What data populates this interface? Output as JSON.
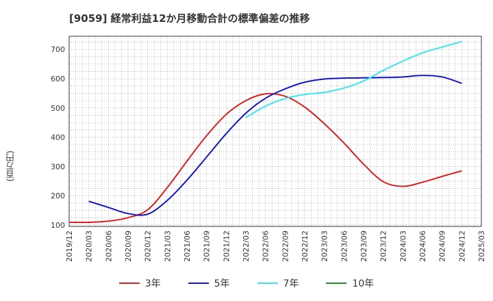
{
  "chart_data": {
    "type": "line",
    "title": "[9059]  経常利益12か月移動合計の標準偏差の推移",
    "ylabel": "(百万円)",
    "xlabel": "",
    "ylim": [
      95,
      745
    ],
    "yticks": [
      100,
      200,
      300,
      400,
      500,
      600,
      700
    ],
    "x_ticks": [
      "2019/12",
      "2020/03",
      "2020/06",
      "2020/09",
      "2020/12",
      "2021/03",
      "2021/06",
      "2021/09",
      "2021/12",
      "2022/03",
      "2022/06",
      "2022/09",
      "2022/12",
      "2023/03",
      "2023/06",
      "2023/09",
      "2023/12",
      "2024/03",
      "2024/06",
      "2024/09",
      "2024/12",
      "2025/03"
    ],
    "grid": true,
    "legend_position": "bottom",
    "series": [
      {
        "name": "3年",
        "color": "#dd1e1e",
        "points": [
          [
            "2019/12",
            109
          ],
          [
            "2020/03",
            109
          ],
          [
            "2020/06",
            113
          ],
          [
            "2020/09",
            125
          ],
          [
            "2020/12",
            152
          ],
          [
            "2021/03",
            228
          ],
          [
            "2021/06",
            318
          ],
          [
            "2021/09",
            405
          ],
          [
            "2021/12",
            478
          ],
          [
            "2022/03",
            525
          ],
          [
            "2022/06",
            548
          ],
          [
            "2022/09",
            540
          ],
          [
            "2022/12",
            503
          ],
          [
            "2023/03",
            446
          ],
          [
            "2023/06",
            380
          ],
          [
            "2023/09",
            308
          ],
          [
            "2023/12",
            248
          ],
          [
            "2024/03",
            232
          ],
          [
            "2024/06",
            246
          ],
          [
            "2024/09",
            266
          ],
          [
            "2024/12",
            285
          ]
        ]
      },
      {
        "name": "5年",
        "color": "#1414c8",
        "points": [
          [
            "2020/03",
            181
          ],
          [
            "2020/06",
            160
          ],
          [
            "2020/09",
            139
          ],
          [
            "2020/12",
            137
          ],
          [
            "2021/03",
            184
          ],
          [
            "2021/06",
            253
          ],
          [
            "2021/09",
            332
          ],
          [
            "2021/12",
            412
          ],
          [
            "2022/03",
            482
          ],
          [
            "2022/06",
            533
          ],
          [
            "2022/09",
            565
          ],
          [
            "2022/12",
            588
          ],
          [
            "2023/03",
            599
          ],
          [
            "2023/06",
            602
          ],
          [
            "2023/09",
            603
          ],
          [
            "2023/12",
            604
          ],
          [
            "2024/03",
            606
          ],
          [
            "2024/06",
            611
          ],
          [
            "2024/09",
            606
          ],
          [
            "2024/12",
            584
          ]
        ]
      },
      {
        "name": "7年",
        "color": "#3ce6f0",
        "points": [
          [
            "2022/03",
            467
          ],
          [
            "2022/06",
            506
          ],
          [
            "2022/09",
            532
          ],
          [
            "2022/12",
            546
          ],
          [
            "2023/03",
            553
          ],
          [
            "2023/06",
            568
          ],
          [
            "2023/09",
            592
          ],
          [
            "2023/12",
            628
          ],
          [
            "2024/03",
            660
          ],
          [
            "2024/06",
            688
          ],
          [
            "2024/09",
            708
          ],
          [
            "2024/12",
            727
          ]
        ]
      },
      {
        "name": "10年",
        "color": "#228b22",
        "points": []
      }
    ]
  }
}
